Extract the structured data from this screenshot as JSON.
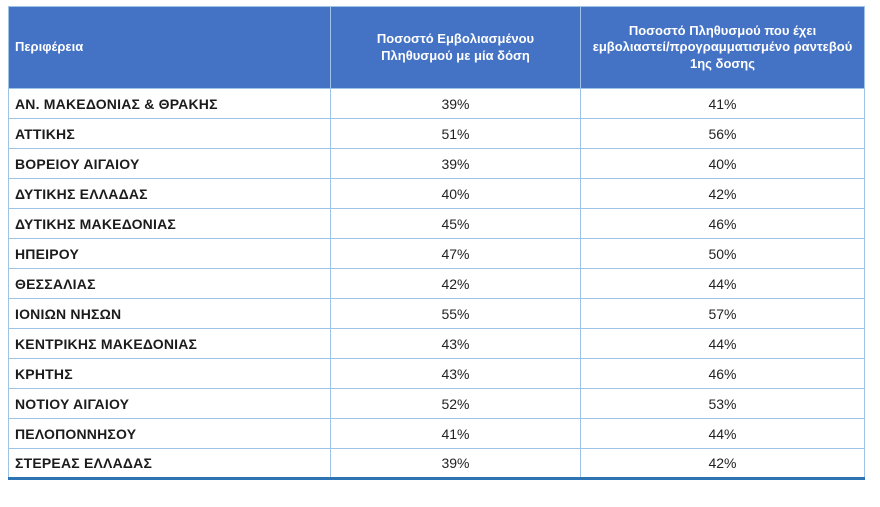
{
  "chart_data": {
    "type": "table",
    "title": "",
    "columns": [
      "Περιφέρεια",
      "Ποσοστό Εμβολιασμένου Πληθυσμού με μία δόση",
      "Ποσοστό Πληθυσμού  που έχει εμβολιαστεί/προγραμματισμένο ραντεβού 1ης δοσης"
    ],
    "rows": [
      {
        "region": "ΑΝ. ΜΑΚΕΔΟΝΙΑΣ & ΘΡΑΚΗΣ",
        "one_dose": "39%",
        "scheduled": "41%"
      },
      {
        "region": "ΑΤΤΙΚΗΣ",
        "one_dose": "51%",
        "scheduled": "56%"
      },
      {
        "region": "ΒΟΡΕΙΟΥ ΑΙΓΑΙΟΥ",
        "one_dose": "39%",
        "scheduled": "40%"
      },
      {
        "region": "ΔΥΤΙΚΗΣ ΕΛΛΑΔΑΣ",
        "one_dose": "40%",
        "scheduled": "42%"
      },
      {
        "region": "ΔΥΤΙΚΗΣ ΜΑΚΕΔΟΝΙΑΣ",
        "one_dose": "45%",
        "scheduled": "46%"
      },
      {
        "region": "ΗΠΕΙΡΟΥ",
        "one_dose": "47%",
        "scheduled": "50%"
      },
      {
        "region": "ΘΕΣΣΑΛΙΑΣ",
        "one_dose": "42%",
        "scheduled": "44%"
      },
      {
        "region": "ΙΟΝΙΩΝ ΝΗΣΩΝ",
        "one_dose": "55%",
        "scheduled": "57%"
      },
      {
        "region": "ΚΕΝΤΡΙΚΗΣ ΜΑΚΕΔΟΝΙΑΣ",
        "one_dose": "43%",
        "scheduled": "44%"
      },
      {
        "region": "ΚΡΗΤΗΣ",
        "one_dose": "43%",
        "scheduled": "46%"
      },
      {
        "region": "ΝΟΤΙΟΥ ΑΙΓΑΙΟΥ",
        "one_dose": "52%",
        "scheduled": "53%"
      },
      {
        "region": "ΠΕΛΟΠΟΝΝΗΣΟΥ",
        "one_dose": "41%",
        "scheduled": "44%"
      },
      {
        "region": "ΣΤΕΡΕΑΣ ΕΛΛΑΔΑΣ",
        "one_dose": "39%",
        "scheduled": "42%"
      }
    ]
  },
  "colors": {
    "header_bg": "#4472C4",
    "header_text": "#FFFFFF",
    "cell_border": "#9DC3E6",
    "bottom_line": "#2E74B5",
    "row_bg": "#FFFFFF",
    "body_text": "#1B1B1B"
  }
}
